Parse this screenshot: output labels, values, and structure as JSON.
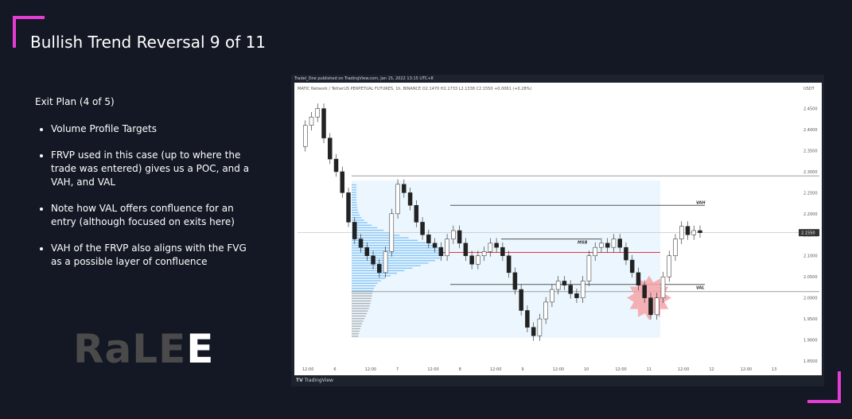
{
  "slide": {
    "title": "Bullish Trend Reversal 9 of 11",
    "subheading": "Exit Plan (4 of 5)",
    "bullets": [
      "Volume Profile Targets",
      "FRVP used in this case (up to where the trade was entered) gives us a POC, and a VAH, and VAL",
      "Note how VAL offers confluence for an entry (although focused on exits here)",
      "VAH of the FRVP also aligns with the FVG as a possible layer of confluence"
    ],
    "logo_dim": "RaLE",
    "logo_bright": "E",
    "accent_color": "#e63cd4"
  },
  "chart": {
    "published": "Tradel_One published on TradingView.com, Jan 15, 2022 13:15 UTC+8",
    "symbol_line": "MATIC Network / TetherUS PERPETUAL FUTURES, 1h, BINANCE  O2.1470  H2.1733  L2.1338  C2.1550  +0.0061 (+0.28%)",
    "currency": "USDT",
    "footer_logo": "TV",
    "footer_brand": "TradingView",
    "annotations": {
      "vah": "VAH",
      "msb": "MSB",
      "val": "VAL"
    },
    "current_price": "2.1550",
    "colors": {
      "poc_line": "#e53935",
      "profile_up": "#64b5f6",
      "profile_dn": "#9e9e9e",
      "fvg_star": "#f4a3a8",
      "range_box": "#e3f2fd"
    }
  },
  "chart_data": {
    "type": "candlestick",
    "y_axis_ticks": [
      "2.4500",
      "2.4000",
      "2.3500",
      "2.3000",
      "2.2500",
      "2.2000",
      "2.1500",
      "2.1000",
      "2.0500",
      "2.0000",
      "1.9500",
      "1.9000",
      "1.8500"
    ],
    "x_axis_ticks": [
      "12:00",
      "6",
      "12:00",
      "7",
      "12:00",
      "8",
      "12:00",
      "9",
      "12:00",
      "10",
      "12:00",
      "11",
      "12:00",
      "12",
      "12:00",
      "13"
    ],
    "levels": {
      "range_high": 2.29,
      "vah": 2.22,
      "msb": 2.14,
      "poc": 2.108,
      "val": 2.032,
      "range_low": 2.015
    },
    "close_path": [
      2.36,
      2.41,
      2.43,
      2.45,
      2.38,
      2.33,
      2.3,
      2.25,
      2.18,
      2.14,
      2.12,
      2.1,
      2.08,
      2.06,
      2.11,
      2.2,
      2.27,
      2.25,
      2.22,
      2.18,
      2.15,
      2.13,
      2.12,
      2.1,
      2.14,
      2.16,
      2.13,
      2.1,
      2.08,
      2.1,
      2.11,
      2.13,
      2.12,
      2.1,
      2.06,
      2.02,
      1.97,
      1.93,
      1.91,
      1.95,
      1.99,
      2.02,
      2.04,
      2.03,
      2.01,
      2.0,
      2.04,
      2.1,
      2.12,
      2.13,
      2.12,
      2.14,
      2.12,
      2.09,
      2.06,
      2.03,
      2.0,
      1.96,
      2.0,
      2.05,
      2.1,
      2.14,
      2.17,
      2.15,
      2.16,
      2.155
    ]
  }
}
